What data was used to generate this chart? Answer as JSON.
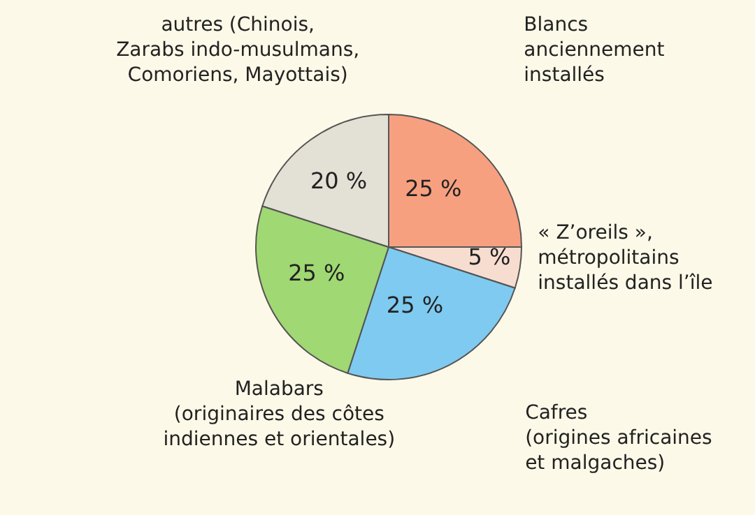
{
  "chart_data": {
    "type": "pie",
    "categories": [
      "Blancs\nanciennement\ninstallés",
      "« Z’oreils »,\nmétropolitains\ninstallés dans l’île",
      "Cafres\n(origines africaines\net malgaches)",
      "Malabars\n(originaires des côtes\nindiennes et orientales)",
      "autres (Chinois,\nZarabs indo-musulmans,\nComoriens, Mayottais)"
    ],
    "values": [
      25,
      5,
      25,
      25,
      20
    ],
    "value_labels": [
      "25 %",
      "5 %",
      "25 %",
      "25 %",
      "20 %"
    ],
    "colors": [
      "#f7a080",
      "#f7ddd0",
      "#7fcaf0",
      "#a0d873",
      "#e3e0d5"
    ]
  }
}
